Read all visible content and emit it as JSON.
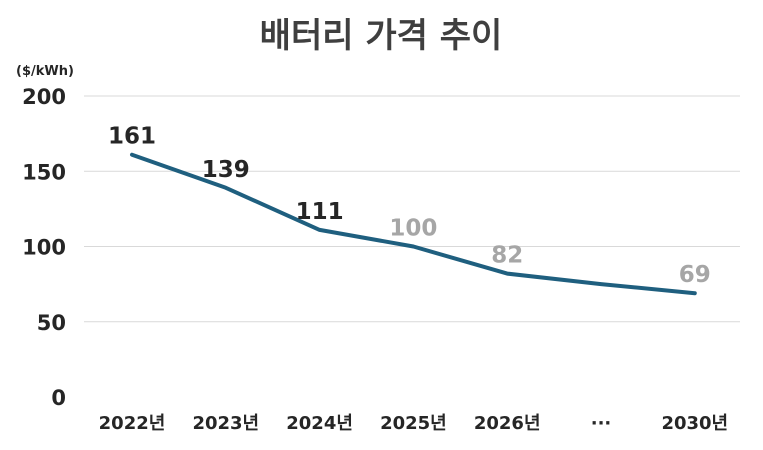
{
  "chart_data": {
    "type": "line",
    "title": "배터리 가격 추이",
    "unit_label": "($/kWh)",
    "categories": [
      "2022년",
      "2023년",
      "2024년",
      "2025년",
      "2026년",
      "···",
      "2030년"
    ],
    "ylim": [
      0,
      200
    ],
    "yticks": [
      "0",
      "50",
      "100",
      "150",
      "200"
    ],
    "grid": true,
    "series": [
      {
        "color": "#1f5f7f",
        "values": [
          161,
          139,
          111,
          100,
          82,
          75,
          69
        ],
        "data_labels": [
          "161",
          "139",
          "111",
          "100",
          "82",
          "",
          "69"
        ],
        "label_styles": [
          "actual",
          "actual",
          "actual",
          "forecast",
          "forecast",
          "",
          "forecast"
        ]
      }
    ],
    "colors": {
      "line": "#1f5f7f",
      "actual_label": "#262626",
      "forecast_label": "#a6a6a6",
      "grid": "#d9d9d9",
      "title": "#3f3f3f"
    }
  }
}
